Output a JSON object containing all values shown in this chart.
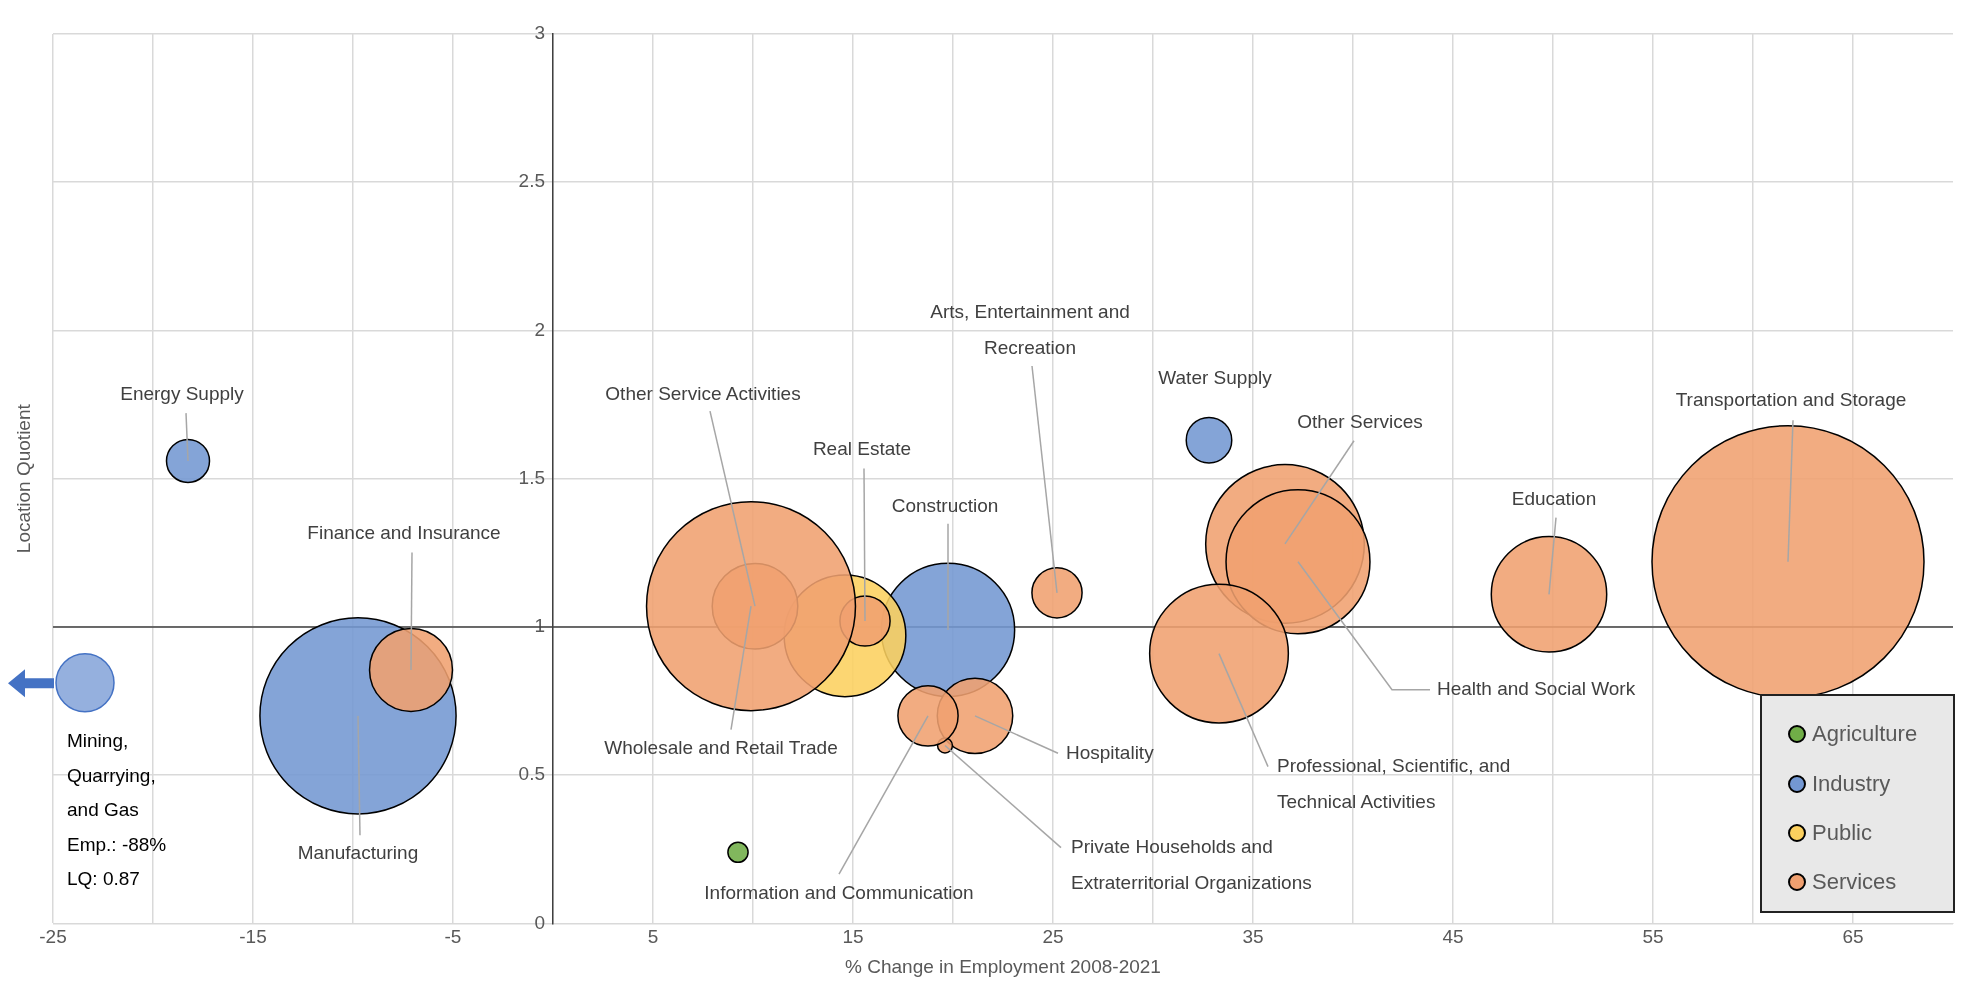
{
  "chart_data": {
    "type": "bubble",
    "xlabel": "% Change in Employment 2008-2021",
    "ylabel": "Location Quotient",
    "xlim": [
      -25,
      70
    ],
    "xticks": [
      -25,
      {
        "value": -20,
        "label": null
      },
      -15,
      {
        "value": -10,
        "label": null
      },
      -5,
      {
        "value": 0,
        "label": null
      },
      5,
      {
        "value": 10,
        "label": null
      },
      15,
      {
        "value": 20,
        "label": null
      },
      25,
      {
        "value": 30,
        "label": null
      },
      35,
      {
        "value": 40,
        "label": null
      },
      45,
      {
        "value": 50,
        "label": null
      },
      55,
      {
        "value": 60,
        "label": null
      },
      65
    ],
    "ylim": [
      0,
      3
    ],
    "yticks": [
      0,
      0.5,
      1,
      1.5,
      2,
      2.5,
      3
    ],
    "grid": true,
    "legend": "bottom right",
    "series": [
      {
        "name": "Agriculture",
        "color": "#70ad47",
        "x": [
          9.25
        ],
        "values": [
          0.24
        ],
        "sizes": [
          0.0055
        ]
      },
      {
        "name": "Industry",
        "color": "#7397d2",
        "x": [
          -18.25,
          -9.75,
          19.75,
          32.8
        ],
        "values": [
          1.56,
          0.7,
          0.99,
          1.63
        ],
        "sizes": [
          0.025,
          0.52,
          0.24,
          0.028
        ]
      },
      {
        "name": "Public",
        "color": "#fcd05e",
        "x": [
          14.6
        ],
        "values": [
          0.97
        ],
        "sizes": [
          0.2
        ]
      },
      {
        "name": "Services",
        "color": "#f0a070",
        "x": [
          -7.1,
          10.1,
          15.6,
          25.2,
          36.6,
          61.75,
          49.8,
          37.25,
          9.9,
          21.1,
          33.3,
          19.6,
          18.75
        ],
        "values": [
          0.855,
          1.07,
          1.02,
          1.115,
          1.28,
          1.22,
          1.11,
          1.22,
          1.07,
          0.7,
          0.91,
          0.6,
          0.7
        ],
        "sizes": [
          0.093,
          0.099,
          0.034,
          0.034,
          0.34,
          1,
          0.18,
          0.28,
          0.59,
          0.077,
          0.26,
          0.003,
          0.049
        ]
      }
    ],
    "ref_lines": [
      {
        "axis": "y",
        "value": 1,
        "color": "#404040"
      }
    ],
    "annotations": [
      {
        "text": "Energy Supply",
        "x": -18.25,
        "y": 1.56
      },
      {
        "text": "Finance and Insurance",
        "x": -7.1,
        "y": 0.855
      },
      {
        "text": "Manufacturing",
        "x": -9.75,
        "y": 0.7
      },
      {
        "text": "Other Service Activities",
        "x": 10.1,
        "y": 1.07
      },
      {
        "text": "Real Estate",
        "x": 15.6,
        "y": 1.02
      },
      {
        "text": "Construction",
        "x": 19.75,
        "y": 0.99
      },
      {
        "text": "Arts, Entertainment and\nRecreation",
        "x": 25.2,
        "y": 1.115
      },
      {
        "text": "Water Supply",
        "x": 32.8,
        "y": 1.63
      },
      {
        "text": "Other Services",
        "x": 36.6,
        "y": 1.28
      },
      {
        "text": "Transportation and Storage",
        "x": 61.75,
        "y": 1.22
      },
      {
        "text": "Education",
        "x": 49.8,
        "y": 1.11
      },
      {
        "text": "Health and Social Work",
        "x": 37.25,
        "y": 1.22
      },
      {
        "text": "Wholesale and Retail Trade",
        "x": 9.9,
        "y": 1.07
      },
      {
        "text": "Hospitality",
        "x": 21.1,
        "y": 0.7
      },
      {
        "text": "Professional, Scientific, and\nTechnical Activities",
        "x": 33.3,
        "y": 0.91
      },
      {
        "text": "Private Households and\nExtraterritorial Organizations",
        "x": 19.6,
        "y": 0.6
      },
      {
        "text": "Information and Communication",
        "x": 18.75,
        "y": 0.7
      },
      "Mining,\nQuarrying,\nand Gas\nEmp.: -88%\nLQ: 0.87"
    ]
  }
}
